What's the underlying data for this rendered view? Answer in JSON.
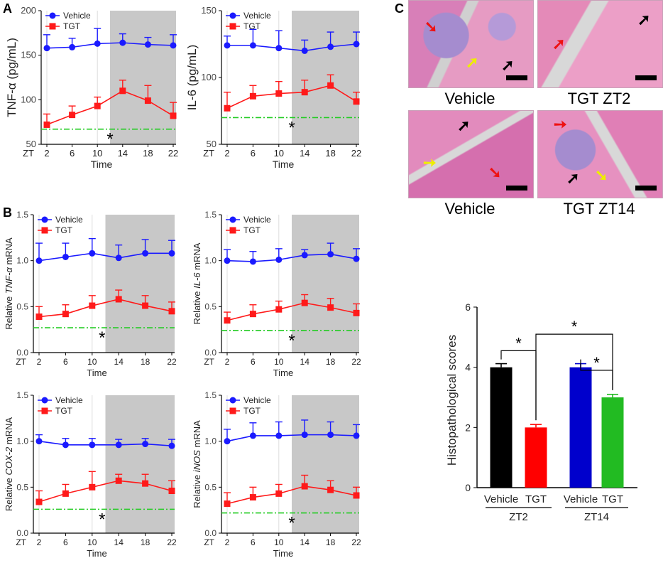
{
  "panel_labels": [
    "A",
    "B",
    "C"
  ],
  "colors": {
    "vehicle": "#1a1aff",
    "tgt": "#ff1a1a",
    "threshold": "#22cc22",
    "dark_phase": "#c8c8c8",
    "bar_vehicle_zt2": "#000000",
    "bar_tgt_zt2": "#ff0000",
    "bar_vehicle_zt14": "#0000cc",
    "bar_tgt_zt14": "#22bb22"
  },
  "legend": {
    "vehicle": "Vehicle",
    "tgt": "TGT"
  },
  "zt_label": "ZT",
  "significance_mark": "*",
  "micro_captions": [
    "Vehicle",
    "TGT ZT2",
    "Vehicle",
    "TGT ZT14"
  ],
  "chart_data": [
    {
      "id": "A1",
      "type": "line",
      "panel": "A",
      "ylabel": "TNF-α (pg/mL)",
      "ylabel_style": "plain",
      "xlabel": "Time",
      "x": [
        2,
        6,
        10,
        14,
        18,
        22
      ],
      "xticks": [
        "2",
        "6",
        "10",
        "14",
        "18",
        "22"
      ],
      "ylim": [
        50,
        200
      ],
      "yticks": [
        50,
        100,
        150,
        200
      ],
      "ytick_labels": [
        "50",
        "100",
        "150",
        "200"
      ],
      "dark_start": 12,
      "threshold": 67,
      "star_x": 12,
      "series": [
        {
          "name": "Vehicle",
          "values": [
            158,
            159,
            163,
            164,
            162,
            161
          ],
          "err": [
            15,
            10,
            17,
            10,
            8,
            12
          ]
        },
        {
          "name": "TGT",
          "values": [
            72,
            83,
            93,
            110,
            99,
            82
          ],
          "err": [
            12,
            10,
            10,
            12,
            17,
            15
          ]
        }
      ]
    },
    {
      "id": "A2",
      "type": "line",
      "panel": "A",
      "ylabel": "IL-6 (pg/mL)",
      "ylabel_style": "plain",
      "xlabel": "Time",
      "x": [
        2,
        6,
        10,
        14,
        18,
        22
      ],
      "xticks": [
        "2",
        "6",
        "10",
        "14",
        "18",
        "22"
      ],
      "ylim": [
        50,
        150
      ],
      "yticks": [
        50,
        100,
        150
      ],
      "ytick_labels": [
        "50",
        "100",
        "150"
      ],
      "dark_start": 12,
      "threshold": 70,
      "star_x": 12,
      "series": [
        {
          "name": "Vehicle",
          "values": [
            124,
            124,
            122,
            120,
            123,
            125
          ],
          "err": [
            7,
            12,
            13,
            8,
            11,
            9
          ]
        },
        {
          "name": "TGT",
          "values": [
            77,
            86,
            88,
            89,
            94,
            82
          ],
          "err": [
            12,
            8,
            9,
            9,
            8,
            7
          ]
        }
      ]
    },
    {
      "id": "B1",
      "type": "line",
      "panel": "B",
      "ylabel_prefix": "Relative ",
      "ylabel_gene": "TNF-α",
      "ylabel_suffix": " mRNA",
      "ylabel_style": "gene",
      "xlabel": "Time",
      "x": [
        2,
        6,
        10,
        14,
        18,
        22
      ],
      "xticks": [
        "2",
        "6",
        "10",
        "14",
        "18",
        "22"
      ],
      "ylim": [
        0,
        1.5
      ],
      "yticks": [
        0,
        0.5,
        1,
        1.5
      ],
      "ytick_labels": [
        "0.0",
        "0.5",
        "1.0",
        "1.5"
      ],
      "dark_start": 12,
      "threshold": 0.27,
      "star_x": 11.5,
      "series": [
        {
          "name": "Vehicle",
          "values": [
            1.0,
            1.04,
            1.08,
            1.03,
            1.08,
            1.08
          ],
          "err": [
            0.19,
            0.15,
            0.16,
            0.14,
            0.15,
            0.14
          ]
        },
        {
          "name": "TGT",
          "values": [
            0.39,
            0.42,
            0.51,
            0.58,
            0.51,
            0.45
          ],
          "err": [
            0.11,
            0.1,
            0.11,
            0.1,
            0.11,
            0.1
          ]
        }
      ]
    },
    {
      "id": "B2",
      "type": "line",
      "panel": "B",
      "ylabel_prefix": "Relative ",
      "ylabel_gene": "IL-6",
      "ylabel_suffix": " mRNA",
      "ylabel_style": "gene",
      "xlabel": "Time",
      "x": [
        2,
        6,
        10,
        14,
        18,
        22
      ],
      "xticks": [
        "2",
        "6",
        "10",
        "14",
        "18",
        "22"
      ],
      "ylim": [
        0,
        1.5
      ],
      "yticks": [
        0,
        0.5,
        1,
        1.5
      ],
      "ytick_labels": [
        "0.0",
        "0.5",
        "1.0",
        "1.5"
      ],
      "dark_start": 12,
      "threshold": 0.24,
      "star_x": 12,
      "series": [
        {
          "name": "Vehicle",
          "values": [
            1.0,
            0.99,
            1.01,
            1.06,
            1.07,
            1.02
          ],
          "err": [
            0.12,
            0.11,
            0.12,
            0.06,
            0.12,
            0.11
          ]
        },
        {
          "name": "TGT",
          "values": [
            0.35,
            0.42,
            0.47,
            0.54,
            0.49,
            0.43
          ],
          "err": [
            0.09,
            0.1,
            0.09,
            0.09,
            0.1,
            0.1
          ]
        }
      ]
    },
    {
      "id": "B3",
      "type": "line",
      "panel": "B",
      "ylabel_prefix": "Relative ",
      "ylabel_gene": "COX-2",
      "ylabel_suffix": " mRNA",
      "ylabel_style": "gene",
      "xlabel": "Time",
      "x": [
        2,
        6,
        10,
        14,
        18,
        22
      ],
      "xticks": [
        "2",
        "6",
        "10",
        "14",
        "18",
        "22"
      ],
      "ylim": [
        0,
        1.5
      ],
      "yticks": [
        0,
        0.5,
        1,
        1.5
      ],
      "ytick_labels": [
        "0.0",
        "0.5",
        "1.0",
        "1.5"
      ],
      "dark_start": 12,
      "threshold": 0.26,
      "star_x": 11.5,
      "series": [
        {
          "name": "Vehicle",
          "values": [
            1.0,
            0.96,
            0.96,
            0.96,
            0.97,
            0.95
          ],
          "err": [
            0.07,
            0.07,
            0.07,
            0.06,
            0.06,
            0.07
          ]
        },
        {
          "name": "TGT",
          "values": [
            0.34,
            0.43,
            0.5,
            0.57,
            0.54,
            0.46
          ],
          "err": [
            0.12,
            0.1,
            0.17,
            0.07,
            0.1,
            0.11
          ]
        }
      ]
    },
    {
      "id": "B4",
      "type": "line",
      "panel": "B",
      "ylabel_prefix": "Relative ",
      "ylabel_gene": "iNOS",
      "ylabel_suffix": " mRNA",
      "ylabel_style": "gene",
      "xlabel": "Time",
      "x": [
        2,
        6,
        10,
        14,
        18,
        22
      ],
      "xticks": [
        "2",
        "6",
        "10",
        "14",
        "18",
        "22"
      ],
      "ylim": [
        0,
        1.5
      ],
      "yticks": [
        0,
        0.5,
        1,
        1.5
      ],
      "ytick_labels": [
        "0.0",
        "0.5",
        "1.0",
        "1.5"
      ],
      "dark_start": 12,
      "threshold": 0.22,
      "star_x": 12,
      "series": [
        {
          "name": "Vehicle",
          "values": [
            1.0,
            1.06,
            1.06,
            1.07,
            1.07,
            1.06
          ],
          "err": [
            0.13,
            0.14,
            0.15,
            0.16,
            0.14,
            0.12
          ]
        },
        {
          "name": "TGT",
          "values": [
            0.32,
            0.39,
            0.43,
            0.51,
            0.47,
            0.41
          ],
          "err": [
            0.12,
            0.11,
            0.1,
            0.12,
            0.1,
            0.09
          ]
        }
      ]
    },
    {
      "id": "C_bar",
      "type": "bar",
      "panel": "C",
      "ylabel": "Histopathological scores",
      "categories": [
        "Vehicle",
        "TGT",
        "Vehicle",
        "TGT"
      ],
      "groups": [
        "ZT2",
        "ZT14"
      ],
      "values": [
        4.0,
        2.0,
        4.0,
        3.0
      ],
      "err": [
        0.12,
        0.1,
        0.12,
        0.1
      ],
      "ylim": [
        0,
        6
      ],
      "yticks": [
        0,
        2,
        4,
        6
      ],
      "ytick_labels": [
        "0",
        "2",
        "4",
        "6"
      ],
      "significance": [
        {
          "from": 0,
          "to": 1,
          "label": "*"
        },
        {
          "from": 1,
          "to": 3,
          "label": "*"
        },
        {
          "from": 2,
          "to": 3,
          "label": "*"
        }
      ]
    }
  ]
}
